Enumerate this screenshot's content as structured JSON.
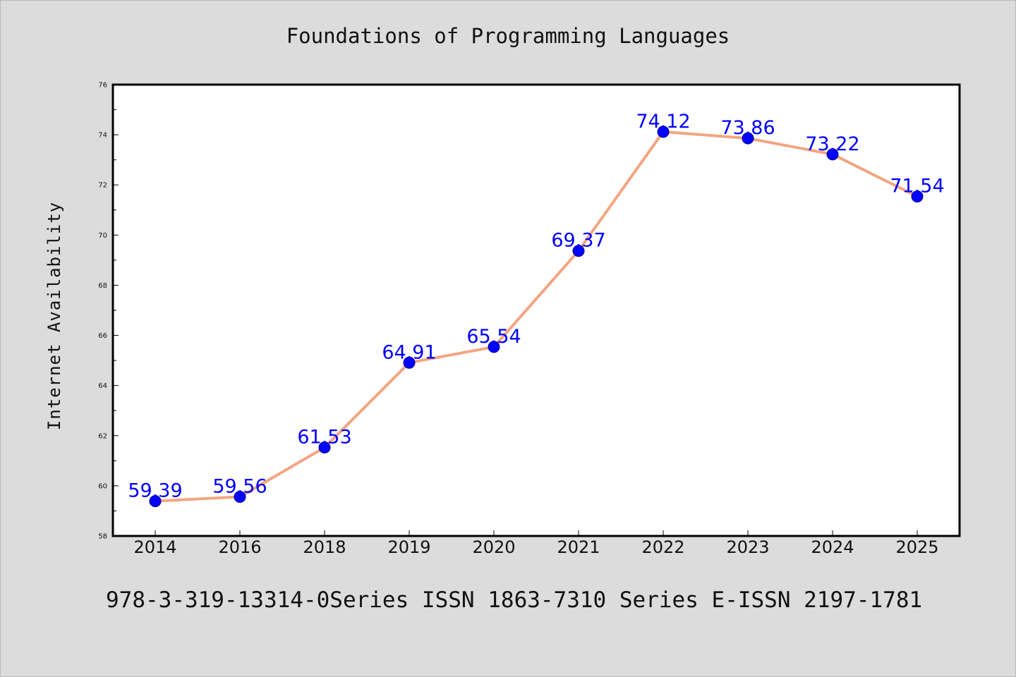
{
  "chart_data": {
    "type": "line",
    "title": "Foundations of Programming Languages",
    "xlabel": "",
    "ylabel": "Internet Availability",
    "categories": [
      "2014",
      "2016",
      "2018",
      "2019",
      "2020",
      "2021",
      "2022",
      "2023",
      "2024",
      "2025"
    ],
    "series": [
      {
        "values": [
          59.39,
          59.56,
          61.53,
          64.91,
          65.54,
          69.37,
          74.12,
          73.86,
          73.22,
          71.54
        ]
      }
    ],
    "data_labels": [
      "59.39",
      "59.56",
      "61.53",
      "64.91",
      "65.54",
      "69.37",
      "74.12",
      "73.86",
      "73.22",
      "71.54"
    ],
    "ylim": [
      58,
      76
    ],
    "yticks": [
      58,
      60,
      62,
      64,
      66,
      68,
      70,
      72,
      74,
      76
    ],
    "ytick_labels": [
      "58",
      "60",
      "62",
      "64",
      "66",
      "68",
      "70",
      "72",
      "74",
      "76"
    ],
    "grid": false,
    "legend": "none",
    "colors": {
      "line": "#f4a582",
      "marker": "#0000ff",
      "label": "#0000ff",
      "background": "#dcdcdc",
      "plot_area": "#ffffff"
    }
  },
  "footer": {
    "text": "978-3-319-13314-0Series ISSN 1863-7310 Series E-ISSN 2197-1781"
  }
}
